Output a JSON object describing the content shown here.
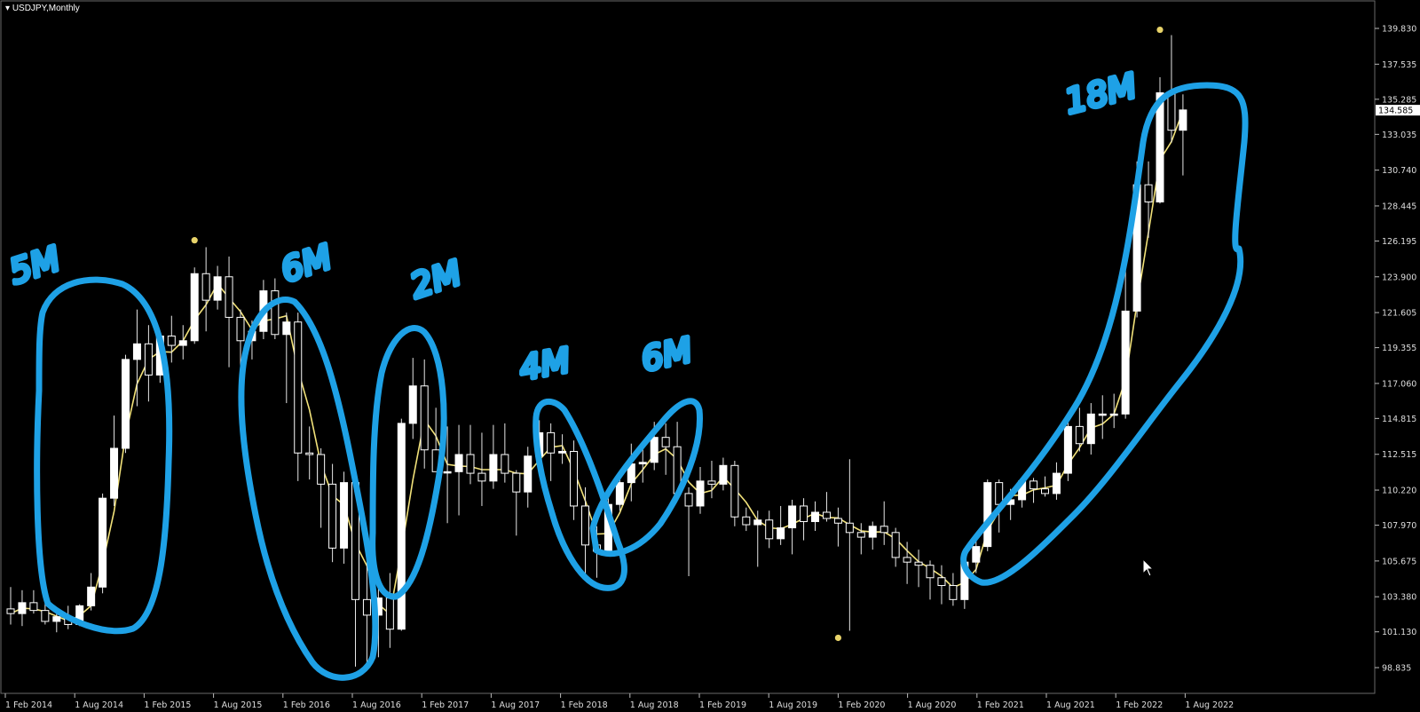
{
  "window": {
    "symbol_label": "USDJPY,Monthly"
  },
  "chart_data": {
    "type": "candlestick",
    "symbol": "USDJPY",
    "timeframe": "Monthly",
    "ylim": [
      98.0,
      141.0
    ],
    "y_ticks": [
      "139.830",
      "137.535",
      "135.285",
      "133.035",
      "130.740",
      "128.445",
      "126.195",
      "123.900",
      "121.605",
      "119.355",
      "117.060",
      "114.815",
      "112.515",
      "110.220",
      "107.970",
      "105.675",
      "103.380",
      "101.130",
      "98.835"
    ],
    "x_ticks": [
      "1 Feb 2014",
      "1 Aug 2014",
      "1 Feb 2015",
      "1 Aug 2015",
      "1 Feb 2016",
      "1 Aug 2016",
      "1 Feb 2017",
      "1 Aug 2017",
      "1 Feb 2018",
      "1 Aug 2018",
      "1 Feb 2019",
      "1 Aug 2019",
      "1 Feb 2020",
      "1 Aug 2020",
      "1 Feb 2021",
      "1 Aug 2021",
      "1 Feb 2022",
      "1 Aug 2022"
    ],
    "current_price": "134.585",
    "candles": [
      {
        "o": 102.6,
        "h": 104.0,
        "l": 101.6,
        "c": 102.3
      },
      {
        "o": 102.3,
        "h": 103.8,
        "l": 101.5,
        "c": 103.0
      },
      {
        "o": 103.0,
        "h": 103.8,
        "l": 102.3,
        "c": 102.5
      },
      {
        "o": 102.5,
        "h": 103.0,
        "l": 101.6,
        "c": 101.8
      },
      {
        "o": 101.8,
        "h": 102.7,
        "l": 101.1,
        "c": 102.1
      },
      {
        "o": 102.1,
        "h": 102.8,
        "l": 101.3,
        "c": 101.6
      },
      {
        "o": 101.6,
        "h": 102.9,
        "l": 101.5,
        "c": 102.8
      },
      {
        "o": 102.8,
        "h": 104.9,
        "l": 102.5,
        "c": 104.0
      },
      {
        "o": 104.0,
        "h": 110.0,
        "l": 103.6,
        "c": 109.7
      },
      {
        "o": 109.7,
        "h": 115.0,
        "l": 109.2,
        "c": 112.9
      },
      {
        "o": 112.9,
        "h": 118.9,
        "l": 112.6,
        "c": 118.6
      },
      {
        "o": 118.6,
        "h": 121.8,
        "l": 115.6,
        "c": 119.6
      },
      {
        "o": 119.6,
        "h": 120.8,
        "l": 115.9,
        "c": 117.6
      },
      {
        "o": 117.6,
        "h": 120.3,
        "l": 117.1,
        "c": 120.1
      },
      {
        "o": 120.1,
        "h": 121.4,
        "l": 118.4,
        "c": 119.5
      },
      {
        "o": 119.5,
        "h": 120.8,
        "l": 118.6,
        "c": 119.8
      },
      {
        "o": 119.8,
        "h": 124.5,
        "l": 119.6,
        "c": 124.1
      },
      {
        "o": 124.1,
        "h": 125.8,
        "l": 120.4,
        "c": 122.4
      },
      {
        "o": 122.4,
        "h": 124.6,
        "l": 121.8,
        "c": 123.9
      },
      {
        "o": 123.9,
        "h": 125.2,
        "l": 118.1,
        "c": 121.3
      },
      {
        "o": 121.3,
        "h": 121.8,
        "l": 116.2,
        "c": 119.8
      },
      {
        "o": 119.8,
        "h": 121.1,
        "l": 118.6,
        "c": 120.4
      },
      {
        "o": 120.4,
        "h": 123.7,
        "l": 119.9,
        "c": 123.0
      },
      {
        "o": 123.0,
        "h": 123.8,
        "l": 119.9,
        "c": 120.2
      },
      {
        "o": 120.2,
        "h": 121.6,
        "l": 115.8,
        "c": 121.0
      },
      {
        "o": 121.0,
        "h": 121.6,
        "l": 110.8,
        "c": 112.6
      },
      {
        "o": 112.6,
        "h": 114.3,
        "l": 110.9,
        "c": 112.5
      },
      {
        "o": 112.5,
        "h": 112.9,
        "l": 107.8,
        "c": 110.6
      },
      {
        "o": 110.6,
        "h": 111.9,
        "l": 105.6,
        "c": 106.5
      },
      {
        "o": 106.5,
        "h": 111.4,
        "l": 105.5,
        "c": 110.7
      },
      {
        "o": 110.7,
        "h": 111.4,
        "l": 98.9,
        "c": 103.2
      },
      {
        "o": 103.2,
        "h": 107.5,
        "l": 99.0,
        "c": 102.2
      },
      {
        "o": 102.2,
        "h": 104.3,
        "l": 99.5,
        "c": 103.3
      },
      {
        "o": 103.3,
        "h": 104.9,
        "l": 100.1,
        "c": 101.3
      },
      {
        "o": 101.3,
        "h": 114.8,
        "l": 101.2,
        "c": 114.5
      },
      {
        "o": 114.5,
        "h": 118.7,
        "l": 113.5,
        "c": 116.9
      },
      {
        "o": 116.9,
        "h": 118.6,
        "l": 111.6,
        "c": 112.8
      },
      {
        "o": 112.8,
        "h": 115.5,
        "l": 111.4,
        "c": 111.4
      },
      {
        "o": 111.4,
        "h": 114.3,
        "l": 108.1,
        "c": 111.4
      },
      {
        "o": 111.4,
        "h": 114.4,
        "l": 108.6,
        "c": 112.5
      },
      {
        "o": 112.5,
        "h": 114.4,
        "l": 110.6,
        "c": 111.3
      },
      {
        "o": 111.3,
        "h": 113.9,
        "l": 109.2,
        "c": 110.8
      },
      {
        "o": 110.8,
        "h": 114.4,
        "l": 110.3,
        "c": 112.5
      },
      {
        "o": 112.5,
        "h": 114.5,
        "l": 110.7,
        "c": 111.3
      },
      {
        "o": 111.3,
        "h": 111.5,
        "l": 107.3,
        "c": 110.1
      },
      {
        "o": 110.1,
        "h": 113.0,
        "l": 109.1,
        "c": 112.4
      },
      {
        "o": 112.4,
        "h": 114.7,
        "l": 112.2,
        "c": 113.9
      },
      {
        "o": 113.9,
        "h": 114.5,
        "l": 110.8,
        "c": 112.6
      },
      {
        "o": 112.6,
        "h": 113.8,
        "l": 111.9,
        "c": 112.7
      },
      {
        "o": 112.7,
        "h": 113.4,
        "l": 108.3,
        "c": 109.2
      },
      {
        "o": 109.2,
        "h": 110.4,
        "l": 104.6,
        "c": 106.7
      },
      {
        "o": 106.7,
        "h": 107.9,
        "l": 104.6,
        "c": 106.3
      },
      {
        "o": 106.3,
        "h": 109.8,
        "l": 106.0,
        "c": 109.3
      },
      {
        "o": 109.3,
        "h": 111.4,
        "l": 108.9,
        "c": 110.7
      },
      {
        "o": 110.7,
        "h": 113.2,
        "l": 109.5,
        "c": 111.9
      },
      {
        "o": 111.9,
        "h": 113.2,
        "l": 110.7,
        "c": 112.0
      },
      {
        "o": 112.0,
        "h": 114.6,
        "l": 111.5,
        "c": 113.6
      },
      {
        "o": 113.6,
        "h": 114.5,
        "l": 111.2,
        "c": 113.0
      },
      {
        "o": 113.0,
        "h": 114.6,
        "l": 109.8,
        "c": 110.0
      },
      {
        "o": 110.0,
        "h": 110.4,
        "l": 104.7,
        "c": 109.2
      },
      {
        "o": 109.2,
        "h": 111.7,
        "l": 108.7,
        "c": 110.8
      },
      {
        "o": 110.8,
        "h": 112.1,
        "l": 109.7,
        "c": 110.6
      },
      {
        "o": 110.6,
        "h": 112.3,
        "l": 110.2,
        "c": 111.8
      },
      {
        "o": 111.8,
        "h": 112.1,
        "l": 107.9,
        "c": 108.5
      },
      {
        "o": 108.5,
        "h": 109.1,
        "l": 107.6,
        "c": 108.0
      },
      {
        "o": 108.0,
        "h": 108.9,
        "l": 105.3,
        "c": 108.3
      },
      {
        "o": 108.3,
        "h": 108.9,
        "l": 106.5,
        "c": 107.1
      },
      {
        "o": 107.1,
        "h": 109.2,
        "l": 106.7,
        "c": 107.8
      },
      {
        "o": 107.8,
        "h": 109.6,
        "l": 106.1,
        "c": 109.2
      },
      {
        "o": 109.2,
        "h": 109.7,
        "l": 107.0,
        "c": 108.2
      },
      {
        "o": 108.2,
        "h": 109.5,
        "l": 107.6,
        "c": 108.8
      },
      {
        "o": 108.8,
        "h": 110.1,
        "l": 108.2,
        "c": 108.4
      },
      {
        "o": 108.4,
        "h": 109.1,
        "l": 106.6,
        "c": 108.1
      },
      {
        "o": 108.1,
        "h": 112.2,
        "l": 101.2,
        "c": 107.5
      },
      {
        "o": 107.5,
        "h": 108.1,
        "l": 106.1,
        "c": 107.2
      },
      {
        "o": 107.2,
        "h": 108.2,
        "l": 106.4,
        "c": 107.9
      },
      {
        "o": 107.9,
        "h": 109.5,
        "l": 106.7,
        "c": 107.5
      },
      {
        "o": 107.5,
        "h": 107.8,
        "l": 105.3,
        "c": 105.9
      },
      {
        "o": 105.9,
        "h": 106.9,
        "l": 104.2,
        "c": 105.6
      },
      {
        "o": 105.6,
        "h": 106.4,
        "l": 104.0,
        "c": 105.4
      },
      {
        "o": 105.4,
        "h": 105.7,
        "l": 103.2,
        "c": 104.6
      },
      {
        "o": 104.6,
        "h": 105.4,
        "l": 102.9,
        "c": 104.1
      },
      {
        "o": 104.1,
        "h": 104.9,
        "l": 102.8,
        "c": 103.2
      },
      {
        "o": 103.2,
        "h": 106.2,
        "l": 102.6,
        "c": 105.6
      },
      {
        "o": 105.6,
        "h": 107.0,
        "l": 104.9,
        "c": 106.6
      },
      {
        "o": 106.6,
        "h": 110.9,
        "l": 106.3,
        "c": 110.7
      },
      {
        "o": 110.7,
        "h": 110.9,
        "l": 107.5,
        "c": 109.3
      },
      {
        "o": 109.3,
        "h": 110.3,
        "l": 108.3,
        "c": 109.6
      },
      {
        "o": 109.6,
        "h": 110.8,
        "l": 109.1,
        "c": 110.8
      },
      {
        "o": 110.8,
        "h": 111.0,
        "l": 109.4,
        "c": 110.3
      },
      {
        "o": 110.3,
        "h": 111.1,
        "l": 109.8,
        "c": 110.0
      },
      {
        "o": 110.0,
        "h": 112.0,
        "l": 109.6,
        "c": 111.3
      },
      {
        "o": 111.3,
        "h": 114.7,
        "l": 110.8,
        "c": 114.3
      },
      {
        "o": 114.3,
        "h": 115.5,
        "l": 112.7,
        "c": 113.2
      },
      {
        "o": 113.2,
        "h": 115.8,
        "l": 112.5,
        "c": 115.1
      },
      {
        "o": 115.1,
        "h": 116.3,
        "l": 113.5,
        "c": 115.1
      },
      {
        "o": 115.1,
        "h": 116.4,
        "l": 114.2,
        "c": 115.1
      },
      {
        "o": 115.1,
        "h": 125.1,
        "l": 114.8,
        "c": 121.7
      },
      {
        "o": 121.7,
        "h": 131.3,
        "l": 121.3,
        "c": 129.8
      },
      {
        "o": 129.8,
        "h": 131.3,
        "l": 126.4,
        "c": 128.7
      },
      {
        "o": 128.7,
        "h": 136.7,
        "l": 128.6,
        "c": 135.7
      },
      {
        "o": 135.7,
        "h": 139.4,
        "l": 132.5,
        "c": 133.3
      },
      {
        "o": 133.3,
        "h": 135.6,
        "l": 130.4,
        "c": 134.6
      }
    ],
    "moving_average": {
      "period": 3,
      "color": "#f2e27a"
    },
    "fractal_markers": [
      "125.9",
      "139.4",
      "101.2"
    ],
    "annotations": [
      "5M",
      "6M",
      "2M",
      "4M",
      "6M",
      "18M"
    ],
    "annotation_color": "#1ea1e6"
  }
}
